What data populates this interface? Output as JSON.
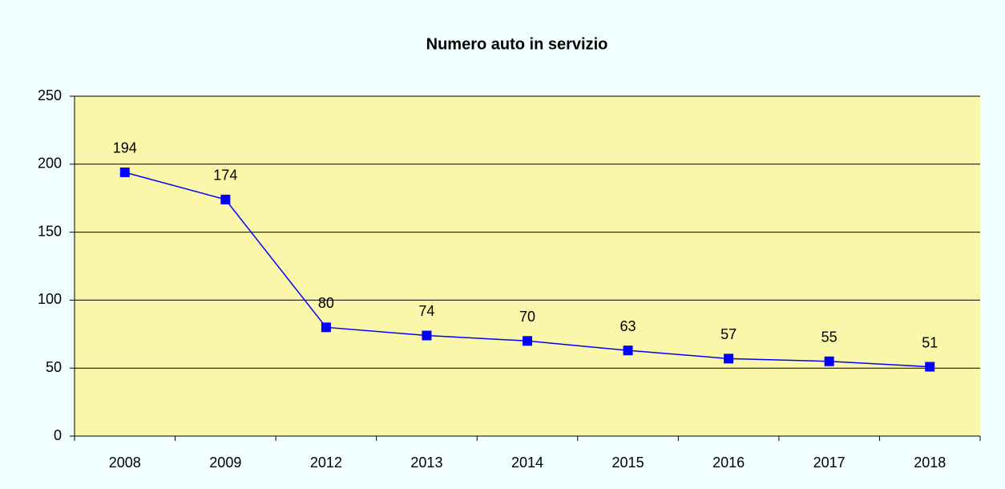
{
  "chart_data": {
    "type": "line",
    "title": "Numero auto in servizio",
    "categories": [
      "2008",
      "2009",
      "2012",
      "2013",
      "2014",
      "2015",
      "2016",
      "2017",
      "2018"
    ],
    "series": [
      {
        "name": "Numero auto in servizio",
        "color": "#0000ff",
        "values": [
          194,
          174,
          80,
          74,
          70,
          63,
          57,
          55,
          51
        ]
      }
    ],
    "ylim": [
      0,
      250
    ],
    "yticks": [
      0,
      50,
      100,
      150,
      200,
      250
    ],
    "grid": true
  }
}
